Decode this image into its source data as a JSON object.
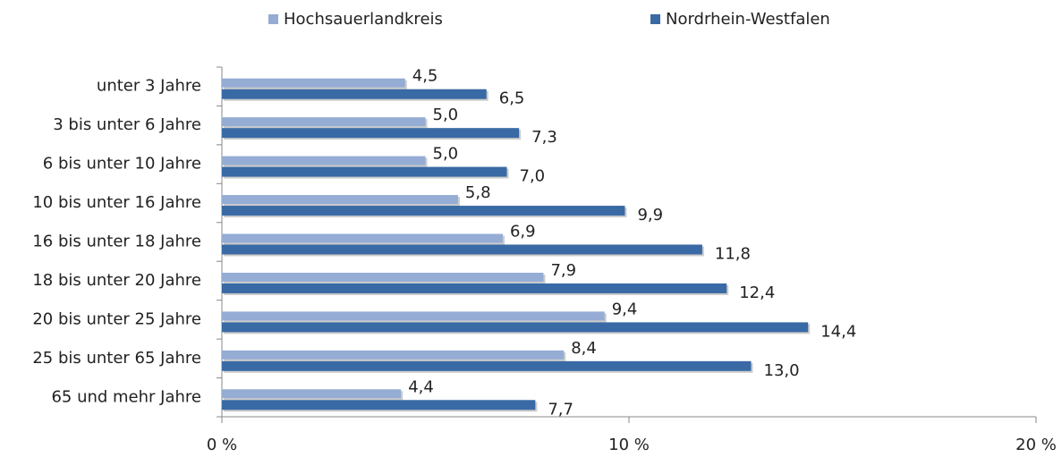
{
  "chart_data": {
    "type": "bar",
    "orientation": "horizontal",
    "categories": [
      "unter 3 Jahre",
      "3 bis unter 6 Jahre",
      "6 bis unter 10 Jahre",
      "10 bis unter 16 Jahre",
      "16 bis unter 18 Jahre",
      "18 bis unter 20 Jahre",
      "20 bis unter 25 Jahre",
      "25 bis unter 65 Jahre",
      "65 und mehr Jahre"
    ],
    "series": [
      {
        "name": "Hochsauerlandkreis",
        "color": "#95acd4",
        "values": [
          4.5,
          5.0,
          5.0,
          5.8,
          6.9,
          7.9,
          9.4,
          8.4,
          4.4
        ],
        "value_labels": [
          "4,5",
          "5,0",
          "5,0",
          "5,8",
          "6,9",
          "7,9",
          "9,4",
          "8,4",
          "4,4"
        ]
      },
      {
        "name": "Nordrhein-Westfalen",
        "color": "#3a6aa5",
        "values": [
          6.5,
          7.3,
          7.0,
          9.9,
          11.8,
          12.4,
          14.4,
          13.0,
          7.7
        ],
        "value_labels": [
          "6,5",
          "7,3",
          "7,0",
          "9,9",
          "11,8",
          "12,4",
          "14,4",
          "13,0",
          "7,7"
        ]
      }
    ],
    "xlim": [
      0,
      20
    ],
    "xticks": [
      {
        "value": 0,
        "label": "0 %"
      },
      {
        "value": 10,
        "label": "10 %"
      },
      {
        "value": 20,
        "label": "20 %"
      }
    ],
    "legend": "top"
  }
}
